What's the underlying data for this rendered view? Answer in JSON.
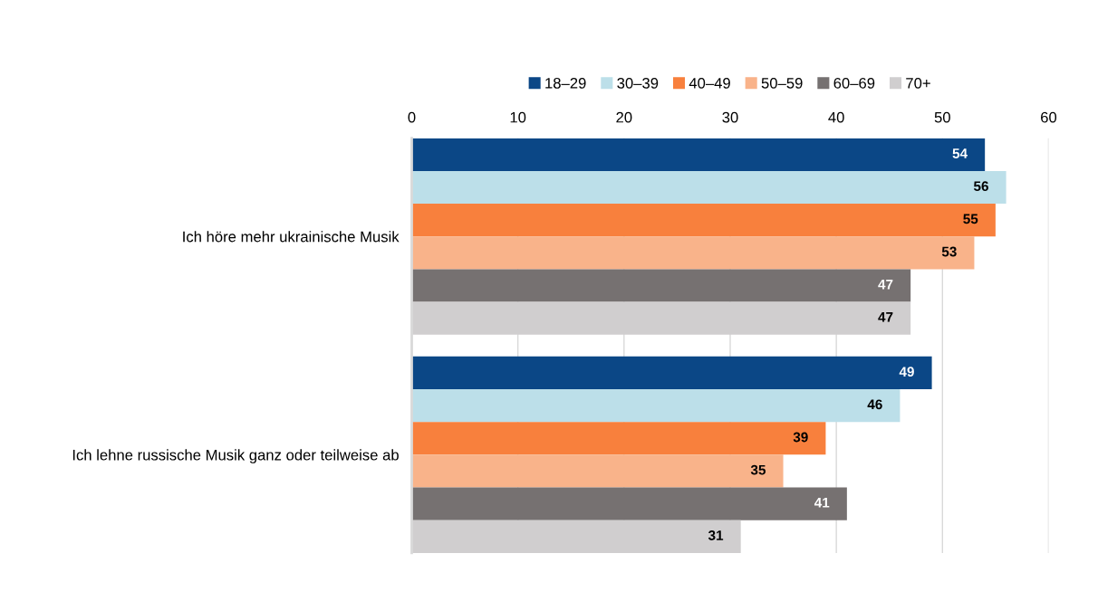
{
  "chart_data": {
    "type": "bar",
    "orientation": "horizontal",
    "categories": [
      "Ich höre mehr ukrainische Musik",
      "Ich lehne russische Musik ganz oder teilweise ab"
    ],
    "series": [
      {
        "name": "18–29",
        "color": "#0b4786",
        "values": [
          54,
          49
        ]
      },
      {
        "name": "30–39",
        "color": "#bcdfe9",
        "values": [
          56,
          46
        ]
      },
      {
        "name": "40–49",
        "color": "#f8803d",
        "values": [
          55,
          39
        ]
      },
      {
        "name": "50–59",
        "color": "#f9b38a",
        "values": [
          53,
          35
        ]
      },
      {
        "name": "60–69",
        "color": "#767171",
        "values": [
          47,
          41
        ]
      },
      {
        "name": "70+",
        "color": "#d0cecf",
        "values": [
          47,
          31
        ]
      }
    ],
    "xlim": [
      0,
      60
    ],
    "xticks": [
      0,
      10,
      20,
      30,
      40,
      50,
      60
    ],
    "grid": "x",
    "legend": "top",
    "data_labels": true
  }
}
